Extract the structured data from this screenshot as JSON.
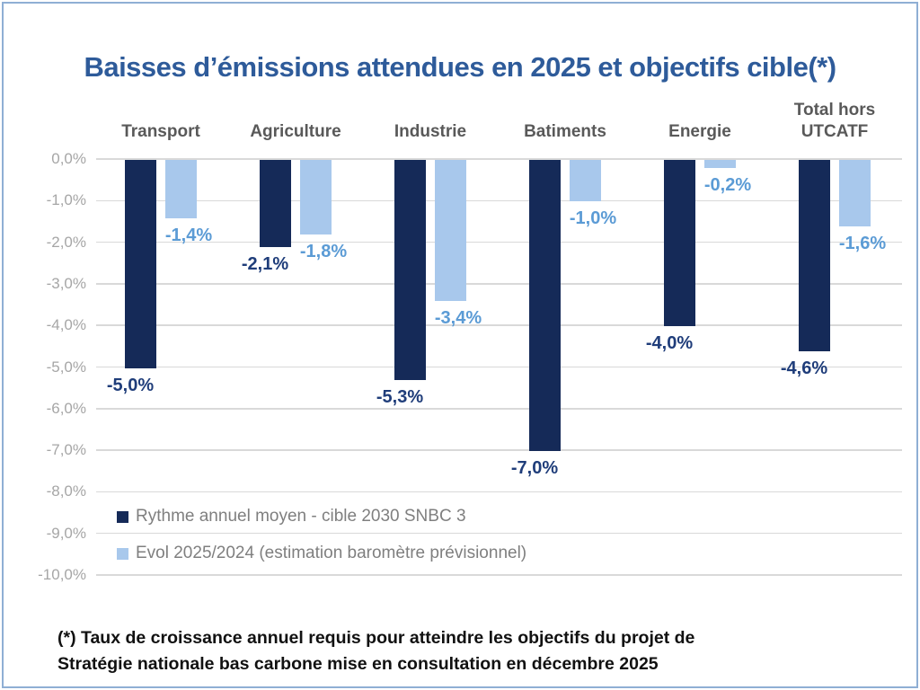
{
  "colors": {
    "frame_border": "#8fafd4",
    "title": "#2e5b9a",
    "footnote": "#111111",
    "legend_text": "#7f7f7f"
  },
  "chart_data": {
    "type": "bar",
    "title": "Baisses d’émissions attendues en 2025 et objectifs cible(*)",
    "categories": [
      "Transport",
      "Agriculture",
      "Industrie",
      "Batiments",
      "Energie",
      "Total hors UTCATF"
    ],
    "series": [
      {
        "id": "cible-2030-snbc3",
        "name": "Rythme annuel moyen - cible 2030 SNBC 3",
        "color": "#152a58",
        "label_color": "#1f3d7a",
        "values": [
          -5.0,
          -2.1,
          -5.3,
          -7.0,
          -4.0,
          -4.6
        ],
        "labels": [
          "-5,0%",
          "-2,1%",
          "-5,3%",
          "-7,0%",
          "-4,0%",
          "-4,6%"
        ]
      },
      {
        "id": "evol-2025-2024",
        "name": "Evol 2025/2024 (estimation baromètre prévisionnel)",
        "color": "#a8c8ec",
        "label_color": "#5b9bd5",
        "values": [
          -1.4,
          -1.8,
          -3.4,
          -1.0,
          -0.2,
          -1.6
        ],
        "labels": [
          "-1,4%",
          "-1,8%",
          "-3,4%",
          "-1,0%",
          "-0,2%",
          "-1,6%"
        ]
      }
    ],
    "xlabel": "",
    "ylabel": "",
    "ylim": [
      -10,
      0
    ],
    "ytick_step": 1,
    "yticks": [
      "0,0%",
      "-1,0%",
      "-2,0%",
      "-3,0%",
      "-4,0%",
      "-5,0%",
      "-6,0%",
      "-7,0%",
      "-8,0%",
      "-9,0%",
      "-10,0%"
    ],
    "grid": true,
    "gridline_color": "#d9d9d9",
    "axis_label_color": "#a6a6a6",
    "category_label_color": "#595959",
    "legend_position": "inside-bottom-left"
  },
  "footnote": {
    "lines": [
      "(*) Taux de croissance annuel requis pour atteindre les objectifs du projet de",
      "Stratégie nationale bas carbone mise en consultation en décembre 2025"
    ]
  }
}
